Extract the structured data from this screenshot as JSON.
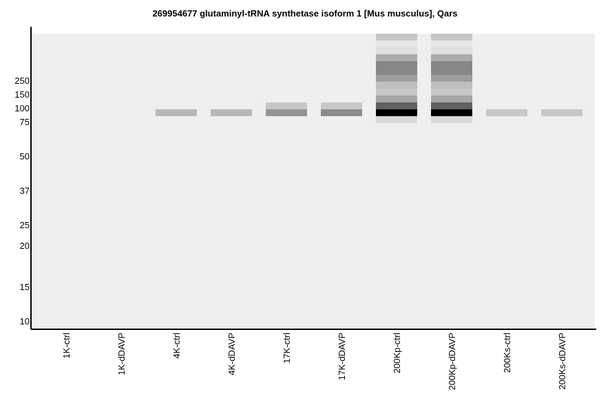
{
  "chart_data": {
    "type": "heatmap",
    "title": "269954677 glutaminyl-tRNA synthetase isoform 1 [Mus musculus], Qars",
    "xlabel": "",
    "ylabel": "",
    "y_tick_labels": [
      "250",
      "150",
      "100",
      "75",
      "50",
      "37",
      "25",
      "20",
      "15",
      "10"
    ],
    "x_tick_labels": [
      "1K-ctrl",
      "1K-dDAVP",
      "4K-ctrl",
      "4K-dDAVP",
      "17K-ctrl",
      "17K-dDAVP",
      "200Kp-ctrl",
      "200Kp-dDAVP",
      "200Ks-ctrl",
      "200Ks-dDAVP"
    ],
    "colors": {
      "plot_background": "#efefef",
      "band_dark": "#000000",
      "band_light": "#ffffff"
    },
    "band_row_kda_labels": [
      "250",
      "150",
      "100",
      "75"
    ],
    "lanes": [
      {
        "name": "1K-ctrl",
        "bands": []
      },
      {
        "name": "1K-dDAVP",
        "bands": []
      },
      {
        "name": "4K-ctrl",
        "bands": [
          {
            "row": 11,
            "intensity": 0.28
          }
        ]
      },
      {
        "name": "4K-dDAVP",
        "bands": [
          {
            "row": 11,
            "intensity": 0.28
          }
        ]
      },
      {
        "name": "17K-ctrl",
        "bands": [
          {
            "row": 10,
            "intensity": 0.22
          },
          {
            "row": 11,
            "intensity": 0.42
          }
        ]
      },
      {
        "name": "17K-dDAVP",
        "bands": [
          {
            "row": 10,
            "intensity": 0.22
          },
          {
            "row": 11,
            "intensity": 0.45
          }
        ]
      },
      {
        "name": "200Kp-ctrl",
        "bands": [
          {
            "row": 0,
            "intensity": 0.22
          },
          {
            "row": 1,
            "intensity": 0.1
          },
          {
            "row": 2,
            "intensity": 0.12
          },
          {
            "row": 3,
            "intensity": 0.33
          },
          {
            "row": 4,
            "intensity": 0.47
          },
          {
            "row": 5,
            "intensity": 0.47
          },
          {
            "row": 6,
            "intensity": 0.38
          },
          {
            "row": 7,
            "intensity": 0.25
          },
          {
            "row": 8,
            "intensity": 0.22
          },
          {
            "row": 9,
            "intensity": 0.35
          },
          {
            "row": 10,
            "intensity": 0.62
          },
          {
            "row": 11,
            "intensity": 1.0
          },
          {
            "row": 12,
            "intensity": 0.15
          }
        ]
      },
      {
        "name": "200Kp-dDAVP",
        "bands": [
          {
            "row": 0,
            "intensity": 0.22
          },
          {
            "row": 1,
            "intensity": 0.1
          },
          {
            "row": 2,
            "intensity": 0.12
          },
          {
            "row": 3,
            "intensity": 0.33
          },
          {
            "row": 4,
            "intensity": 0.47
          },
          {
            "row": 5,
            "intensity": 0.47
          },
          {
            "row": 6,
            "intensity": 0.38
          },
          {
            "row": 7,
            "intensity": 0.25
          },
          {
            "row": 8,
            "intensity": 0.22
          },
          {
            "row": 9,
            "intensity": 0.35
          },
          {
            "row": 10,
            "intensity": 0.62
          },
          {
            "row": 11,
            "intensity": 1.0
          },
          {
            "row": 12,
            "intensity": 0.15
          }
        ]
      },
      {
        "name": "200Ks-ctrl",
        "bands": [
          {
            "row": 11,
            "intensity": 0.22
          }
        ]
      },
      {
        "name": "200Ks-dDAVP",
        "bands": [
          {
            "row": 11,
            "intensity": 0.22
          }
        ]
      }
    ]
  }
}
